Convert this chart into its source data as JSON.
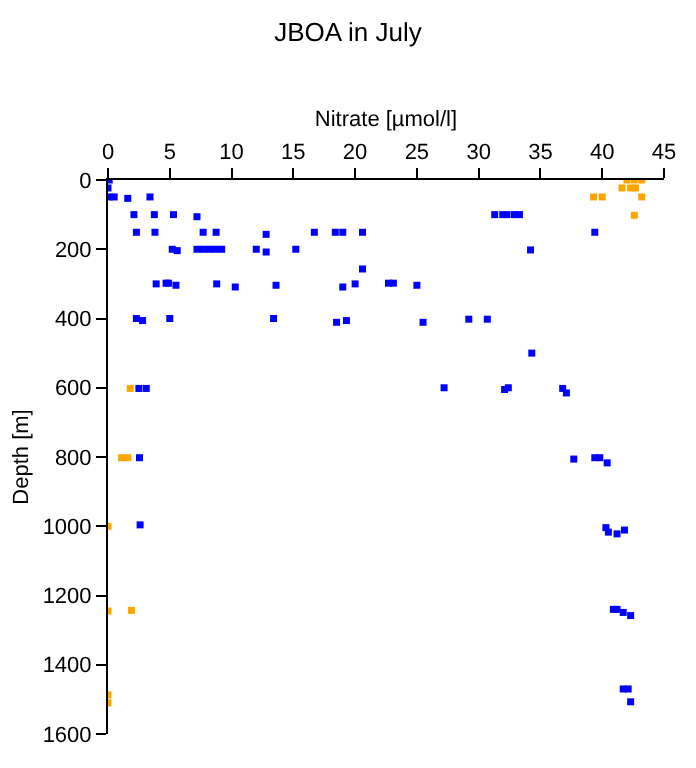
{
  "chart_data": {
    "type": "scatter",
    "title": "JBOA in July",
    "xlabel": "Nitrate [µmol/l]",
    "ylabel": "Depth [m]",
    "xlim": [
      0,
      45
    ],
    "xticks": [
      0,
      5,
      10,
      15,
      20,
      25,
      30,
      35,
      40,
      45
    ],
    "ylim": [
      1600,
      0
    ],
    "yticks": [
      0,
      200,
      400,
      600,
      800,
      1000,
      1200,
      1400,
      1600
    ],
    "marker": "square",
    "series": [
      {
        "color": "#0000ff",
        "x": [
          0.1,
          0,
          0.1,
          0.5,
          1.6,
          3.4,
          2.1,
          3.75,
          5.3,
          7.2,
          2.3,
          3.8,
          7.7,
          8.75,
          12.8,
          16.7,
          18.4,
          19,
          20.6,
          5.2,
          5.6,
          7.2,
          7.7,
          8.2,
          8.7,
          9.2,
          12,
          12.8,
          15.2,
          20.6,
          3.9,
          4.7,
          4.9,
          5.5,
          8.8,
          10.3,
          13.6,
          19,
          20,
          22.7,
          2.3,
          2.8,
          5.0,
          13.4,
          18.5,
          19.3,
          2.5,
          3.1,
          2.55,
          31.3,
          31.95,
          32.3,
          32.9,
          33.3,
          39.4,
          34.2,
          23.1,
          25,
          25.5,
          29.2,
          30.7,
          34.3,
          27.2,
          32.1,
          32.4,
          36.8,
          37.1,
          37.7,
          39.4,
          39.8,
          40.4,
          2.6,
          40.3,
          40.5,
          41.2,
          41.8,
          40.9,
          41.2,
          41.7,
          42.3,
          41.7,
          42.1,
          42.3
        ],
        "values": [
          0,
          23,
          49,
          49,
          53,
          49,
          100,
          100,
          100,
          106,
          151,
          151,
          151,
          151,
          157,
          151,
          151,
          151,
          151,
          200,
          204,
          200,
          200,
          200,
          200,
          200,
          200,
          208,
          200,
          257,
          300,
          298,
          298,
          304,
          300,
          309,
          304,
          309,
          300,
          298,
          400,
          406,
          400,
          400,
          411,
          406,
          602,
          602,
          802,
          100,
          100,
          100,
          100,
          100,
          151,
          202,
          298,
          304,
          411,
          402,
          402,
          500,
          600,
          605,
          600,
          602,
          615,
          806,
          802,
          802,
          817,
          996,
          1004,
          1017,
          1022,
          1011,
          1240,
          1240,
          1249,
          1258,
          1470,
          1470,
          1507
        ]
      },
      {
        "color": "#ffa500",
        "x": [
          1.8,
          1.1,
          1.6,
          42,
          42.6,
          43.2,
          41.6,
          42.3,
          42.7,
          39.3,
          40.0,
          43.2,
          42.6,
          0,
          1.9,
          0,
          0,
          0
        ],
        "values": [
          602,
          802,
          802,
          0,
          0,
          0,
          23,
          23,
          23,
          49,
          49,
          49,
          102,
          1000,
          1243,
          1245,
          1487,
          1510
        ]
      }
    ]
  }
}
